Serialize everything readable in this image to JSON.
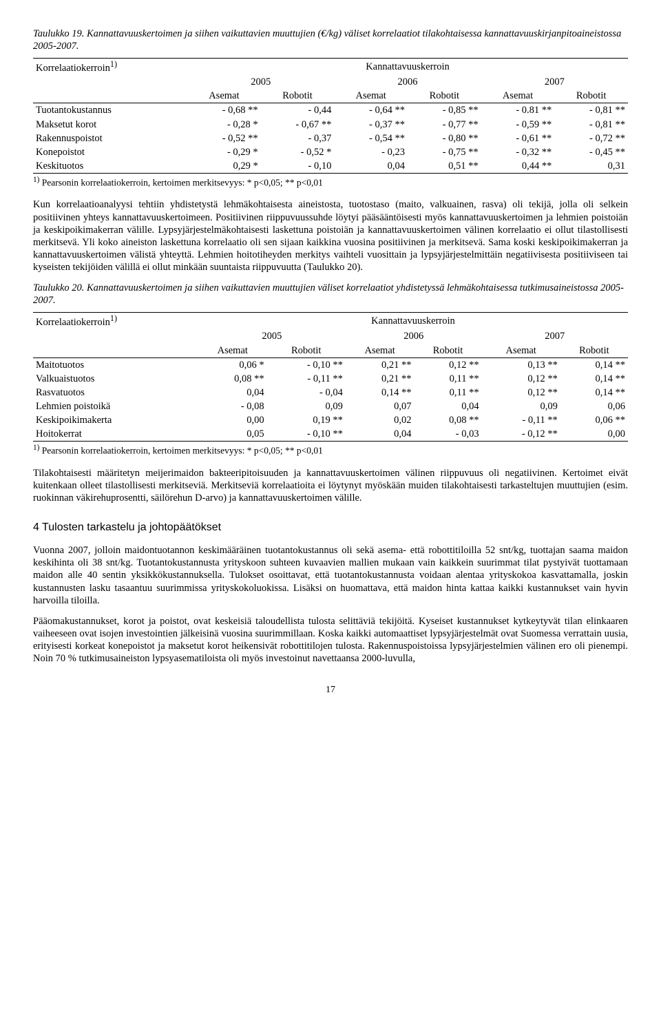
{
  "table19": {
    "caption": "Taulukko 19. Kannattavuuskertoimen ja siihen vaikuttavien muuttujien (€/kg) väliset korrelaatiot tilakohtaisessa kannattavuuskirjanpitoaineistossa 2005-2007.",
    "corr_label": "Korrelaatiokerroin",
    "corr_sup": "1)",
    "kk_label": "Kannattavuuskerroin",
    "years": [
      "2005",
      "2006",
      "2007"
    ],
    "cols": [
      "Asemat",
      "Robotit",
      "Asemat",
      "Robotit",
      "Asemat",
      "Robotit"
    ],
    "rows": [
      {
        "label": "Tuotantokustannus",
        "v": [
          "- 0,68 **",
          "- 0,44",
          "- 0,64 **",
          "- 0,85 **",
          "- 0.81 **",
          "- 0,81 **"
        ]
      },
      {
        "label": "Maksetut korot",
        "v": [
          "- 0,28 *",
          "- 0,67 **",
          "- 0,37 **",
          "- 0,77 **",
          "- 0,59 **",
          "- 0,81 **"
        ]
      },
      {
        "label": "Rakennuspoistot",
        "v": [
          "- 0,52 **",
          "- 0,37",
          "- 0,54 **",
          "- 0,80 **",
          "- 0,61 **",
          "- 0,72 **"
        ]
      },
      {
        "label": "Konepoistot",
        "v": [
          "- 0,29 *",
          "- 0,52 *",
          "- 0,23",
          "- 0,75 **",
          "- 0,32 **",
          "- 0,45 **"
        ]
      },
      {
        "label": "Keskituotos",
        "v": [
          "0,29 *",
          "- 0,10",
          "0,04",
          "0,51 **",
          "0,44 **",
          "0,31"
        ]
      }
    ],
    "footnote_sup": "1)",
    "footnote": " Pearsonin korrelaatiokerroin, kertoimen merkitsevyys: * p<0,05; ** p<0,01"
  },
  "para1": "Kun korrelaatioanalyysi tehtiin yhdistetystä lehmäkohtaisesta aineistosta, tuotostaso (maito, valkuainen, rasva) oli tekijä, jolla oli selkein positiivinen yhteys kannattavuuskertoimeen. Positiivinen riippuvuussuhde löytyi pääsääntöisesti myös kannattavuuskertoimen ja lehmien poistoiän ja keskipoikimakerran välille. Lypsyjärjestelmäkohtaisesti laskettuna poistoiän ja kannattavuuskertoimen välinen korrelaatio ei ollut tilastollisesti merkitsevä. Yli koko aineiston laskettuna korrelaatio oli sen sijaan kaikkina vuosina positiivinen ja merkitsevä. Sama koski keskipoikimakerran ja kannattavuuskertoimen välistä yhteyttä. Lehmien hoitotiheyden merkitys vaihteli vuosittain ja lypsyjärjestelmittäin negatiivisesta positiiviseen tai kyseisten tekijöiden välillä ei ollut minkään suuntaista riippuvuutta (Taulukko 20).",
  "table20": {
    "caption": "Taulukko 20. Kannattavuuskertoimen ja siihen vaikuttavien muuttujien väliset korrelaatiot yhdistetyssä lehmäkohtaisessa tutkimusaineistossa 2005-2007.",
    "corr_label": "Korrelaatiokerroin",
    "corr_sup": "1)",
    "kk_label": "Kannattavuuskerroin",
    "years": [
      "2005",
      "2006",
      "2007"
    ],
    "cols": [
      "Asemat",
      "Robotit",
      "Asemat",
      "Robotit",
      "Asemat",
      "Robotit"
    ],
    "rows": [
      {
        "label": "Maitotuotos",
        "v": [
          "0,06 *",
          "- 0,10 **",
          "0,21 **",
          "0,12 **",
          "0,13 **",
          "0,14 **"
        ]
      },
      {
        "label": "Valkuaistuotos",
        "v": [
          "0,08 **",
          "- 0,11 **",
          "0,21 **",
          "0,11 **",
          "0,12 **",
          "0,14 **"
        ]
      },
      {
        "label": "Rasvatuotos",
        "v": [
          "0,04",
          "- 0,04",
          "0,14 **",
          "0,11 **",
          "0,12 **",
          "0,14 **"
        ]
      },
      {
        "label": "Lehmien poistoikä",
        "v": [
          "- 0,08",
          "0,09",
          "0,07",
          "0,04",
          "0,09",
          "0,06"
        ]
      },
      {
        "label": "Keskipoikimakerta",
        "v": [
          "0,00",
          "0,19 **",
          "0,02",
          "0,08 **",
          "- 0,11 **",
          "0,06 **"
        ]
      },
      {
        "label": "Hoitokerrat",
        "v": [
          "0,05",
          "- 0,10 **",
          "0,04",
          "- 0,03",
          "- 0,12 **",
          "0,00"
        ]
      }
    ],
    "footnote_sup": "1)",
    "footnote": " Pearsonin korrelaatiokerroin, kertoimen merkitsevyys: * p<0,05; ** p<0,01"
  },
  "para2": "Tilakohtaisesti määritetyn meijerimaidon bakteeripitoisuuden ja kannattavuuskertoimen välinen riippuvuus oli negatiivinen. Kertoimet eivät kuitenkaan olleet tilastollisesti merkitseviä. Merkitseviä korrelaatioita ei löytynyt myöskään muiden tilakohtaisesti tarkasteltujen muuttujien (esim. ruokinnan väkirehuprosentti, säilörehun D-arvo) ja kannattavuuskertoimen välille.",
  "section": "4 Tulosten tarkastelu ja johtopäätökset",
  "para3": "Vuonna 2007, jolloin maidontuotannon keskimääräinen tuotantokustannus oli sekä asema- että robottitiloilla 52 snt/kg, tuottajan saama maidon keskihinta oli 38 snt/kg. Tuotantokustannusta yrityskoon suhteen kuvaavien mallien mukaan vain kaikkein suurimmat tilat pystyivät tuottamaan maidon alle 40 sentin yksikkökustannuksella. Tulokset osoittavat, että tuotantokustannusta voidaan alentaa yrityskokoa kasvattamalla, joskin kustannusten lasku tasaantuu suurimmissa yrityskokoluokissa. Lisäksi on huomattava, että maidon hinta kattaa kaikki kustannukset vain hyvin harvoilla tiloilla.",
  "para4": "Pääomakustannukset, korot ja poistot, ovat keskeisiä taloudellista tulosta selittäviä tekijöitä. Kyseiset kustannukset kytkeytyvät tilan elinkaaren vaiheeseen ovat isojen investointien jälkeisinä vuosina suurimmillaan. Koska kaikki automaattiset lypsyjärjestelmät ovat Suomessa verrattain uusia, erityisesti korkeat konepoistot ja maksetut korot heikensivät robottitilojen tulosta. Rakennuspoistoissa lypsyjärjestelmien välinen ero oli pienempi. Noin 70 % tutkimusaineiston lypsyasematiloista oli myös investoinut navettaansa 2000-luvulla,",
  "pagenum": "17"
}
